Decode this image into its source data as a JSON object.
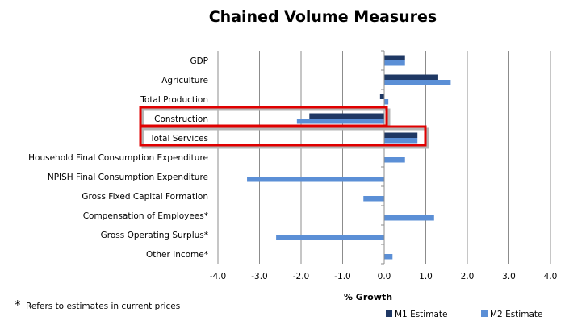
{
  "chart_data": {
    "type": "bar",
    "orientation": "horizontal",
    "title": "Chained Volume Measures",
    "xlabel": "% Growth",
    "ylabel": "",
    "xlim": [
      -4.0,
      4.0
    ],
    "x_ticks": [
      "-4.0",
      "-3.0",
      "-2.0",
      "-1.0",
      "0.0",
      "1.0",
      "2.0",
      "3.0",
      "4.0"
    ],
    "grid": "vertical",
    "legend_position": "bottom-right",
    "categories": [
      "GDP",
      "Agriculture",
      "Total Production",
      "Construction",
      "Total Services",
      "Household Final Consumption Expenditure",
      "NPISH Final Consumption Expenditure",
      "Gross Fixed Capital Formation",
      "Compensation of Employees*",
      "Gross Operating Surplus*",
      "Other Income*"
    ],
    "series": [
      {
        "name": "M1 Estimate",
        "color": "#1f3864",
        "values": [
          0.5,
          1.3,
          -0.1,
          -1.8,
          0.8,
          null,
          null,
          null,
          null,
          null,
          null
        ]
      },
      {
        "name": "M2 Estimate",
        "color": "#5b8fd6",
        "values": [
          0.5,
          1.6,
          0.1,
          -2.1,
          0.8,
          0.5,
          -3.3,
          -0.5,
          1.2,
          -2.6,
          0.2
        ]
      }
    ],
    "highlighted_categories": [
      "Construction",
      "Total Services"
    ],
    "highlight_color": "#e00000"
  },
  "footnote": {
    "star": "*",
    "text": "Refers to estimates in current prices"
  }
}
